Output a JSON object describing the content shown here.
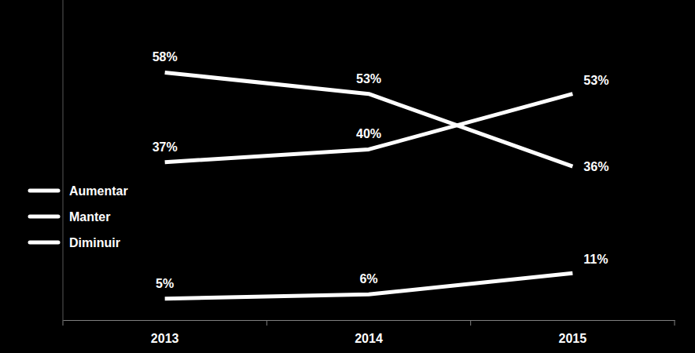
{
  "chart_data": {
    "type": "line",
    "categories": [
      "2013",
      "2014",
      "2015"
    ],
    "series": [
      {
        "name": "Aumentar",
        "color": "#ffffff",
        "values": [
          58,
          53,
          36
        ],
        "value_labels": [
          "58%",
          "53%",
          "36%"
        ]
      },
      {
        "name": "Manter",
        "color": "#ffffff",
        "values": [
          37,
          40,
          53
        ],
        "value_labels": [
          "37%",
          "40%",
          "53%"
        ]
      },
      {
        "name": "Diminuir",
        "color": "#ffffff",
        "values": [
          5,
          6,
          11
        ],
        "value_labels": [
          "5%",
          "6%",
          "11%"
        ]
      }
    ],
    "ylim": [
      0,
      75
    ],
    "grid": false,
    "legend": "left",
    "data_labels": true,
    "tick_labels": "x"
  }
}
